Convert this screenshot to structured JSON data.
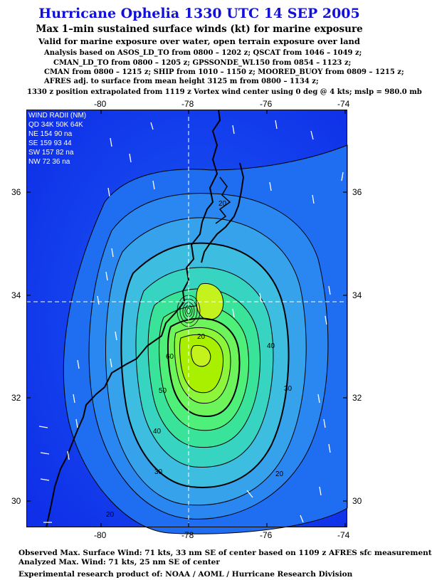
{
  "header": {
    "title": "Hurricane Ophelia 1330 UTC 14 SEP 2005",
    "subtitle": "Max 1–min sustained surface winds (kt) for marine exposure",
    "subtitle2": "Valid for marine exposure over water, open terrain exposure over land"
  },
  "analysis": [
    "Analysis based on  ASOS_LD_TO from 0800 – 1202 z;  QSCAT from 1046 – 1049 z;",
    "CMAN_LD_TO from 0800 – 1205 z;  GPSSONDE_WL150 from 0854 – 1123 z;",
    "CMAN from 0800 – 1215 z;  SHIP from 1010 – 1150 z;  MOORED_BUOY from 0809 – 1215 z;",
    "AFRES adj. to surface from mean height 3125 m from 0800 – 1134 z;",
    "1330 z position extrapolated from 1119 z Vortex wind center using 0 deg @ 4 kts; mslp = 980.0 mb"
  ],
  "wind_radii": {
    "title": "WIND RADII (NM)",
    "header": "QD 34K 50K 64K",
    "rows": [
      "NE 154  90  na",
      "SE 159  93  44",
      "SW 157  82  na",
      "NW  72  36  na"
    ]
  },
  "axes": {
    "lon_labels": [
      "-80",
      "-78",
      "-76",
      "-74"
    ],
    "lat_labels": [
      "36",
      "34",
      "32",
      "30"
    ]
  },
  "contour_labels": [
    "20",
    "30",
    "40",
    "50",
    "60",
    "40",
    "30",
    "20",
    "20",
    "20"
  ],
  "footer": {
    "observed": "Observed Max. Surface Wind: 71 kts, 33 nm SE of center based on 1109 z AFRES sfc measurement",
    "analyzed": "Analyzed Max. Wind: 71 kts, 25 nm SE of center",
    "credit": "Experimental research product of:  NOAA / AOML / Hurricane Research Division"
  },
  "colors": {
    "title": "#1010d8",
    "ocean": "#1540ee",
    "core": "#a8f000"
  }
}
